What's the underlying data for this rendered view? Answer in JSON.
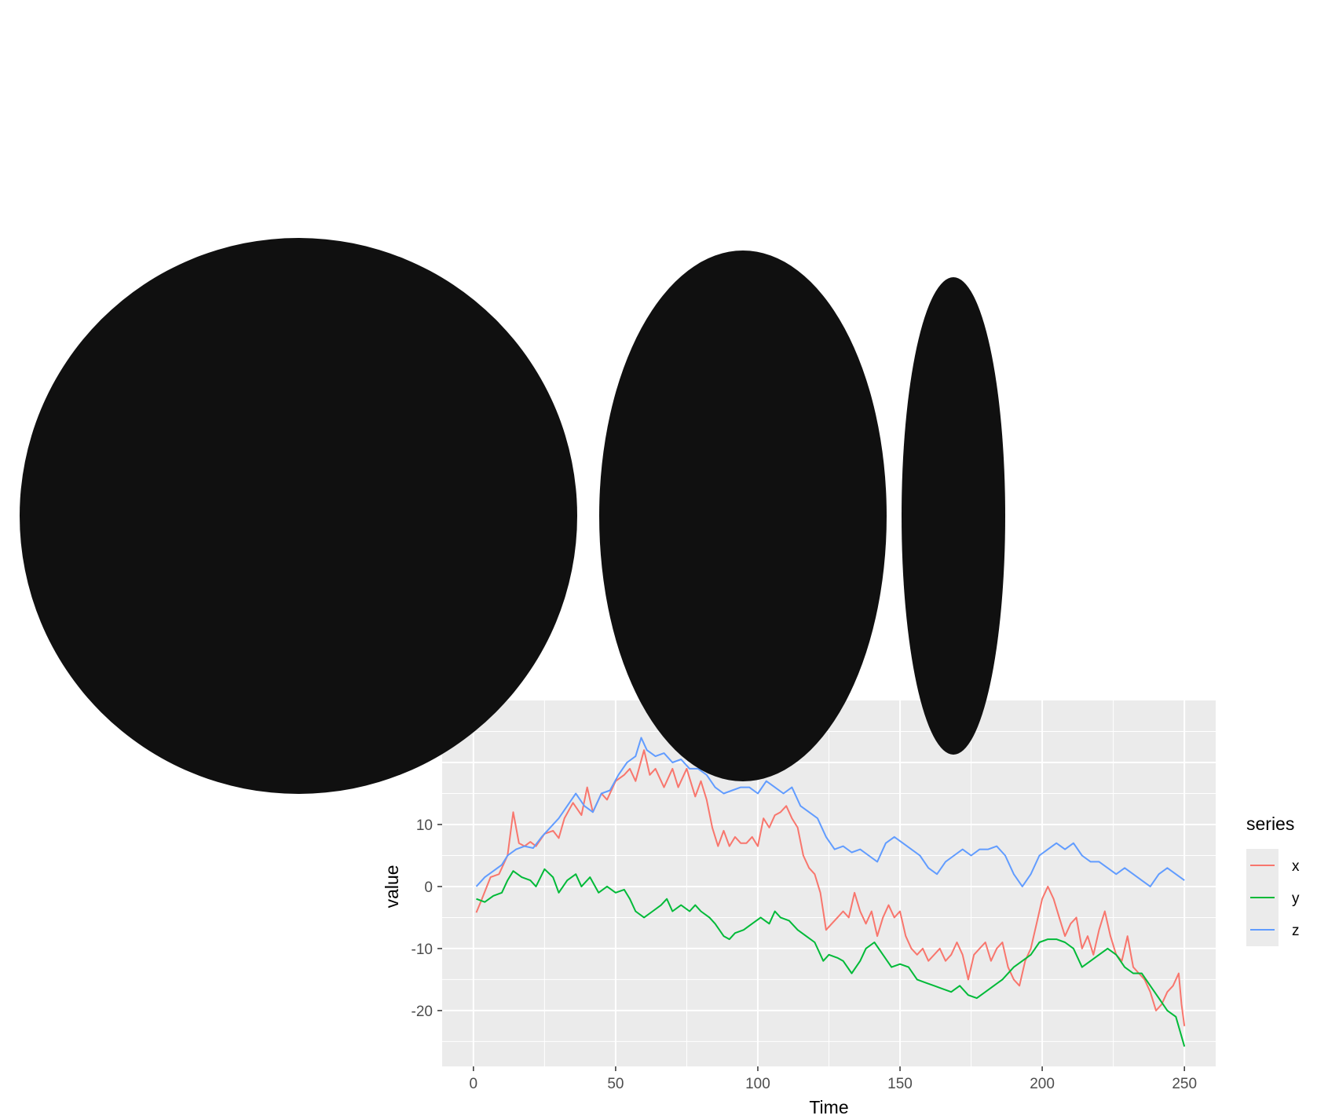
{
  "chart_data": {
    "type": "line",
    "xlabel": "Time",
    "ylabel": "value",
    "xlim": [
      -11,
      261
    ],
    "ylim": [
      -29,
      30
    ],
    "x_ticks": [
      "0",
      "50",
      "100",
      "150",
      "200",
      "250"
    ],
    "y_ticks": [
      "10",
      "0",
      "-10",
      "-20"
    ],
    "grid": true,
    "legend": {
      "title": "series",
      "position": "right",
      "entries": [
        "x",
        "y",
        "z"
      ]
    },
    "series": [
      {
        "name": "x",
        "color": "#F8766D",
        "points": [
          [
            1,
            -4.2
          ],
          [
            3,
            -2
          ],
          [
            6,
            1.5
          ],
          [
            9,
            2
          ],
          [
            12,
            5
          ],
          [
            14,
            12
          ],
          [
            16,
            7
          ],
          [
            18,
            6.5
          ],
          [
            20,
            7.2
          ],
          [
            22,
            6.5
          ],
          [
            25,
            8.5
          ],
          [
            28,
            9
          ],
          [
            30,
            7.8
          ],
          [
            32,
            11
          ],
          [
            35,
            13.5
          ],
          [
            38,
            11.5
          ],
          [
            40,
            16
          ],
          [
            42,
            12
          ],
          [
            45,
            15
          ],
          [
            47,
            14
          ],
          [
            50,
            17
          ],
          [
            53,
            18
          ],
          [
            55,
            19
          ],
          [
            57,
            17
          ],
          [
            60,
            22
          ],
          [
            62,
            18
          ],
          [
            64,
            19
          ],
          [
            67,
            16
          ],
          [
            70,
            19
          ],
          [
            72,
            16
          ],
          [
            75,
            19
          ],
          [
            78,
            14.5
          ],
          [
            80,
            17
          ],
          [
            82,
            14
          ],
          [
            84,
            9.5
          ],
          [
            86,
            6.5
          ],
          [
            88,
            9
          ],
          [
            90,
            6.5
          ],
          [
            92,
            8
          ],
          [
            94,
            7
          ],
          [
            96,
            7
          ],
          [
            98,
            8
          ],
          [
            100,
            6.5
          ],
          [
            102,
            11
          ],
          [
            104,
            9.5
          ],
          [
            106,
            11.5
          ],
          [
            108,
            12
          ],
          [
            110,
            13
          ],
          [
            112,
            11
          ],
          [
            114,
            9.5
          ],
          [
            116,
            5
          ],
          [
            118,
            3
          ],
          [
            120,
            2
          ],
          [
            122,
            -1
          ],
          [
            124,
            -7
          ],
          [
            126,
            -6
          ],
          [
            128,
            -5
          ],
          [
            130,
            -4
          ],
          [
            132,
            -5
          ],
          [
            134,
            -1
          ],
          [
            136,
            -4
          ],
          [
            138,
            -6
          ],
          [
            140,
            -4
          ],
          [
            142,
            -8
          ],
          [
            144,
            -5
          ],
          [
            146,
            -3
          ],
          [
            148,
            -5
          ],
          [
            150,
            -4
          ],
          [
            152,
            -8
          ],
          [
            154,
            -10
          ],
          [
            156,
            -11
          ],
          [
            158,
            -10
          ],
          [
            160,
            -12
          ],
          [
            162,
            -11
          ],
          [
            164,
            -10
          ],
          [
            166,
            -12
          ],
          [
            168,
            -11
          ],
          [
            170,
            -9
          ],
          [
            172,
            -11
          ],
          [
            174,
            -15
          ],
          [
            176,
            -11
          ],
          [
            178,
            -10
          ],
          [
            180,
            -9
          ],
          [
            182,
            -12
          ],
          [
            184,
            -10
          ],
          [
            186,
            -9
          ],
          [
            188,
            -13
          ],
          [
            190,
            -15
          ],
          [
            192,
            -16
          ],
          [
            194,
            -12
          ],
          [
            196,
            -10
          ],
          [
            198,
            -6
          ],
          [
            200,
            -2
          ],
          [
            202,
            0
          ],
          [
            204,
            -2
          ],
          [
            206,
            -5
          ],
          [
            208,
            -8
          ],
          [
            210,
            -6
          ],
          [
            212,
            -5
          ],
          [
            214,
            -10
          ],
          [
            216,
            -8
          ],
          [
            218,
            -11
          ],
          [
            220,
            -7
          ],
          [
            222,
            -4
          ],
          [
            224,
            -8
          ],
          [
            226,
            -11
          ],
          [
            228,
            -12
          ],
          [
            230,
            -8
          ],
          [
            232,
            -13
          ],
          [
            234,
            -14
          ],
          [
            236,
            -15
          ],
          [
            238,
            -17
          ],
          [
            240,
            -20
          ],
          [
            242,
            -19
          ],
          [
            244,
            -17
          ],
          [
            246,
            -16
          ],
          [
            248,
            -14
          ],
          [
            249,
            -19
          ],
          [
            250,
            -22.5
          ]
        ]
      },
      {
        "name": "y",
        "color": "#00BA38",
        "points": [
          [
            1,
            -2
          ],
          [
            4,
            -2.5
          ],
          [
            7,
            -1.5
          ],
          [
            10,
            -1
          ],
          [
            12,
            1
          ],
          [
            14,
            2.5
          ],
          [
            17,
            1.5
          ],
          [
            20,
            1
          ],
          [
            22,
            0
          ],
          [
            25,
            2.8
          ],
          [
            28,
            1.5
          ],
          [
            30,
            -1
          ],
          [
            33,
            1
          ],
          [
            36,
            2
          ],
          [
            38,
            0
          ],
          [
            41,
            1.5
          ],
          [
            44,
            -1
          ],
          [
            47,
            0
          ],
          [
            50,
            -1
          ],
          [
            53,
            -0.5
          ],
          [
            55,
            -2
          ],
          [
            57,
            -4
          ],
          [
            60,
            -5
          ],
          [
            63,
            -4
          ],
          [
            66,
            -3
          ],
          [
            68,
            -2
          ],
          [
            70,
            -4
          ],
          [
            73,
            -3
          ],
          [
            76,
            -4
          ],
          [
            78,
            -3
          ],
          [
            80,
            -4
          ],
          [
            83,
            -5
          ],
          [
            85,
            -6
          ],
          [
            88,
            -8
          ],
          [
            90,
            -8.5
          ],
          [
            92,
            -7.5
          ],
          [
            95,
            -7
          ],
          [
            98,
            -6
          ],
          [
            101,
            -5
          ],
          [
            104,
            -6
          ],
          [
            106,
            -4
          ],
          [
            108,
            -5
          ],
          [
            111,
            -5.5
          ],
          [
            114,
            -7
          ],
          [
            117,
            -8
          ],
          [
            120,
            -9
          ],
          [
            123,
            -12
          ],
          [
            125,
            -11
          ],
          [
            128,
            -11.5
          ],
          [
            130,
            -12
          ],
          [
            133,
            -14
          ],
          [
            136,
            -12
          ],
          [
            138,
            -10
          ],
          [
            141,
            -9
          ],
          [
            144,
            -11
          ],
          [
            147,
            -13
          ],
          [
            150,
            -12.5
          ],
          [
            153,
            -13
          ],
          [
            156,
            -15
          ],
          [
            159,
            -15.5
          ],
          [
            162,
            -16
          ],
          [
            165,
            -16.5
          ],
          [
            168,
            -17
          ],
          [
            171,
            -16
          ],
          [
            174,
            -17.5
          ],
          [
            177,
            -18
          ],
          [
            180,
            -17
          ],
          [
            183,
            -16
          ],
          [
            186,
            -15
          ],
          [
            190,
            -13
          ],
          [
            193,
            -12
          ],
          [
            196,
            -11
          ],
          [
            199,
            -9
          ],
          [
            202,
            -8.5
          ],
          [
            205,
            -8.5
          ],
          [
            208,
            -9
          ],
          [
            211,
            -10
          ],
          [
            214,
            -13
          ],
          [
            217,
            -12
          ],
          [
            220,
            -11
          ],
          [
            223,
            -10
          ],
          [
            226,
            -11
          ],
          [
            229,
            -13
          ],
          [
            232,
            -14
          ],
          [
            235,
            -14
          ],
          [
            238,
            -16
          ],
          [
            241,
            -18
          ],
          [
            244,
            -20
          ],
          [
            247,
            -21
          ],
          [
            250,
            -25.8
          ]
        ]
      },
      {
        "name": "z",
        "color": "#619CFF",
        "points": [
          [
            1,
            0
          ],
          [
            4,
            1.5
          ],
          [
            7,
            2.5
          ],
          [
            10,
            3.5
          ],
          [
            12,
            5
          ],
          [
            15,
            6
          ],
          [
            18,
            6.5
          ],
          [
            21,
            6.2
          ],
          [
            24,
            8
          ],
          [
            27,
            9.5
          ],
          [
            30,
            11
          ],
          [
            33,
            13
          ],
          [
            36,
            15
          ],
          [
            39,
            13
          ],
          [
            42,
            12
          ],
          [
            45,
            15
          ],
          [
            48,
            15.5
          ],
          [
            51,
            18
          ],
          [
            54,
            20
          ],
          [
            57,
            21
          ],
          [
            59,
            24
          ],
          [
            61,
            22
          ],
          [
            64,
            21
          ],
          [
            67,
            21.5
          ],
          [
            70,
            20
          ],
          [
            73,
            20.5
          ],
          [
            76,
            19
          ],
          [
            79,
            19
          ],
          [
            82,
            18
          ],
          [
            85,
            16
          ],
          [
            88,
            15
          ],
          [
            91,
            15.5
          ],
          [
            94,
            16
          ],
          [
            97,
            16
          ],
          [
            100,
            15
          ],
          [
            103,
            17
          ],
          [
            106,
            16
          ],
          [
            109,
            15
          ],
          [
            112,
            16
          ],
          [
            115,
            13
          ],
          [
            118,
            12
          ],
          [
            121,
            11
          ],
          [
            124,
            8
          ],
          [
            127,
            6
          ],
          [
            130,
            6.5
          ],
          [
            133,
            5.5
          ],
          [
            136,
            6
          ],
          [
            139,
            5
          ],
          [
            142,
            4
          ],
          [
            145,
            7
          ],
          [
            148,
            8
          ],
          [
            151,
            7
          ],
          [
            154,
            6
          ],
          [
            157,
            5
          ],
          [
            160,
            3
          ],
          [
            163,
            2
          ],
          [
            166,
            4
          ],
          [
            169,
            5
          ],
          [
            172,
            6
          ],
          [
            175,
            5
          ],
          [
            178,
            6
          ],
          [
            181,
            6
          ],
          [
            184,
            6.5
          ],
          [
            187,
            5
          ],
          [
            190,
            2
          ],
          [
            193,
            0
          ],
          [
            196,
            2
          ],
          [
            199,
            5
          ],
          [
            202,
            6
          ],
          [
            205,
            7
          ],
          [
            208,
            6
          ],
          [
            211,
            7
          ],
          [
            214,
            5
          ],
          [
            217,
            4
          ],
          [
            220,
            4
          ],
          [
            223,
            3
          ],
          [
            226,
            2
          ],
          [
            229,
            3
          ],
          [
            232,
            2
          ],
          [
            235,
            1
          ],
          [
            238,
            0
          ],
          [
            241,
            2
          ],
          [
            244,
            3
          ],
          [
            247,
            2
          ],
          [
            250,
            1
          ]
        ]
      }
    ]
  }
}
